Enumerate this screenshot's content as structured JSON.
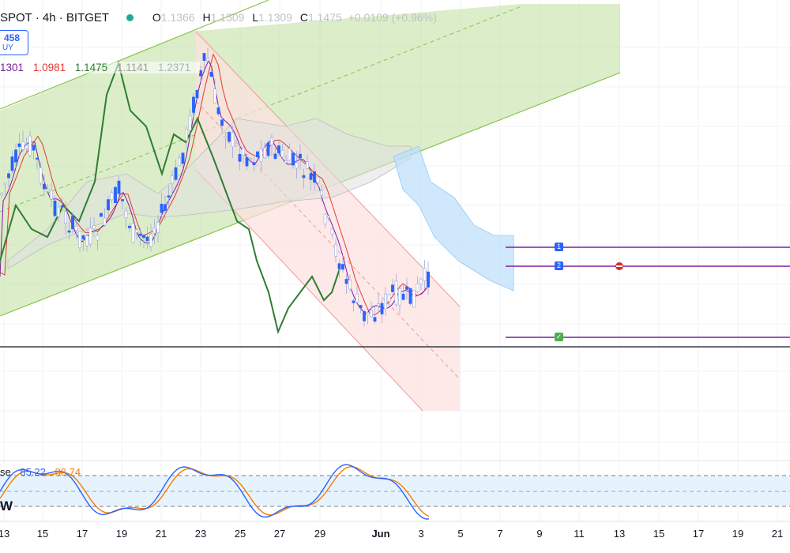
{
  "header": {
    "symbol": "SPOT · 4h · BITGET",
    "open_label": "O",
    "open": "1.1366",
    "high_label": "H",
    "high": "1.1509",
    "low_label": "L",
    "low": "1.1309",
    "close_label": "C",
    "close": "1.1475",
    "change": "+0.0109 (+0.96%)"
  },
  "price_box": {
    "value": "458",
    "side": "UY",
    "color": "#2962ff"
  },
  "indicator_values": [
    {
      "text": "1301",
      "color": "#7b1fa2"
    },
    {
      "text": "1.0981",
      "color": "#e53935"
    },
    {
      "text": "1.1475",
      "color": "#2e7d32"
    },
    {
      "text": "1.1141",
      "color": "#9e9e9e"
    },
    {
      "text": "1.2371",
      "color": "#a5b4c4"
    }
  ],
  "stochastic": {
    "label": "se",
    "k": "85.22",
    "d": "88.74",
    "k_color": "#2962ff",
    "d_color": "#f57c00"
  },
  "pane_label": "W",
  "markers": {
    "m1": "1",
    "m2": "2",
    "m3": "✓"
  },
  "x_axis": [
    "13",
    "15",
    "17",
    "19",
    "21",
    "23",
    "25",
    "27",
    "29",
    "Jun",
    "3",
    "5",
    "7",
    "9",
    "11",
    "13",
    "15",
    "17",
    "19",
    "21"
  ],
  "colors": {
    "up": "#2962ff",
    "down": "#2962ff",
    "channel_up": "#8bc34a",
    "channel_down": "#ef9a9a",
    "cloud_up": "#c5e1a5",
    "cloud_down": "#bbdefb",
    "target": "#7b1fa2"
  }
}
